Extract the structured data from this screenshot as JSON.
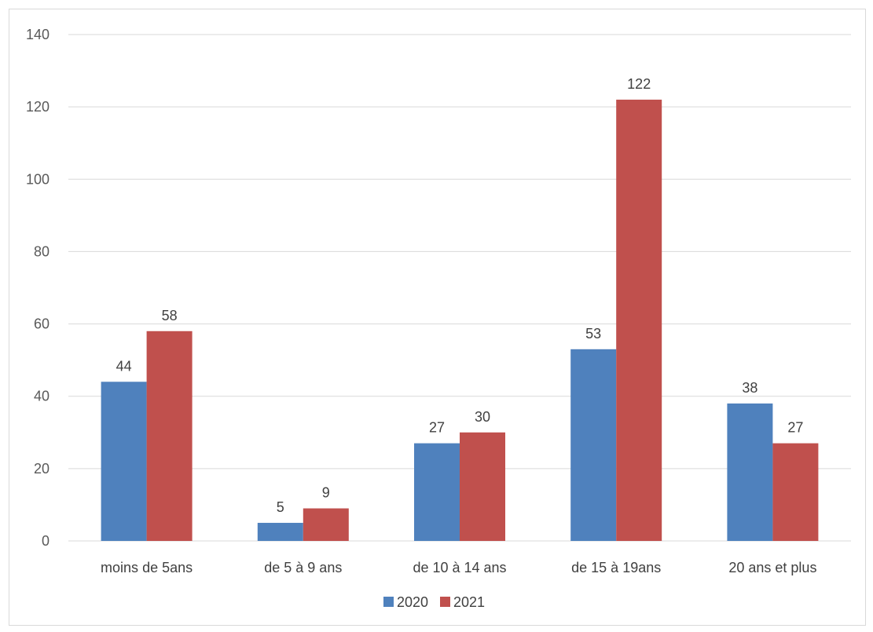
{
  "chart_data": {
    "type": "bar",
    "title": "",
    "xlabel": "",
    "ylabel": "",
    "categories": [
      "moins de 5ans",
      "de 5 à 9 ans",
      "de 10 à 14 ans",
      "de 15 à 19ans",
      "20 ans et plus"
    ],
    "series": [
      {
        "name": "2020",
        "values": [
          44,
          5,
          27,
          53,
          38
        ],
        "color": "#4f81bd"
      },
      {
        "name": "2021",
        "values": [
          58,
          9,
          30,
          122,
          27
        ],
        "color": "#c0504d"
      }
    ],
    "ylim": [
      0,
      140
    ],
    "yticks": [
      0,
      20,
      40,
      60,
      80,
      100,
      120,
      140
    ],
    "grid": true,
    "legend_position": "bottom",
    "data_labels": true
  }
}
